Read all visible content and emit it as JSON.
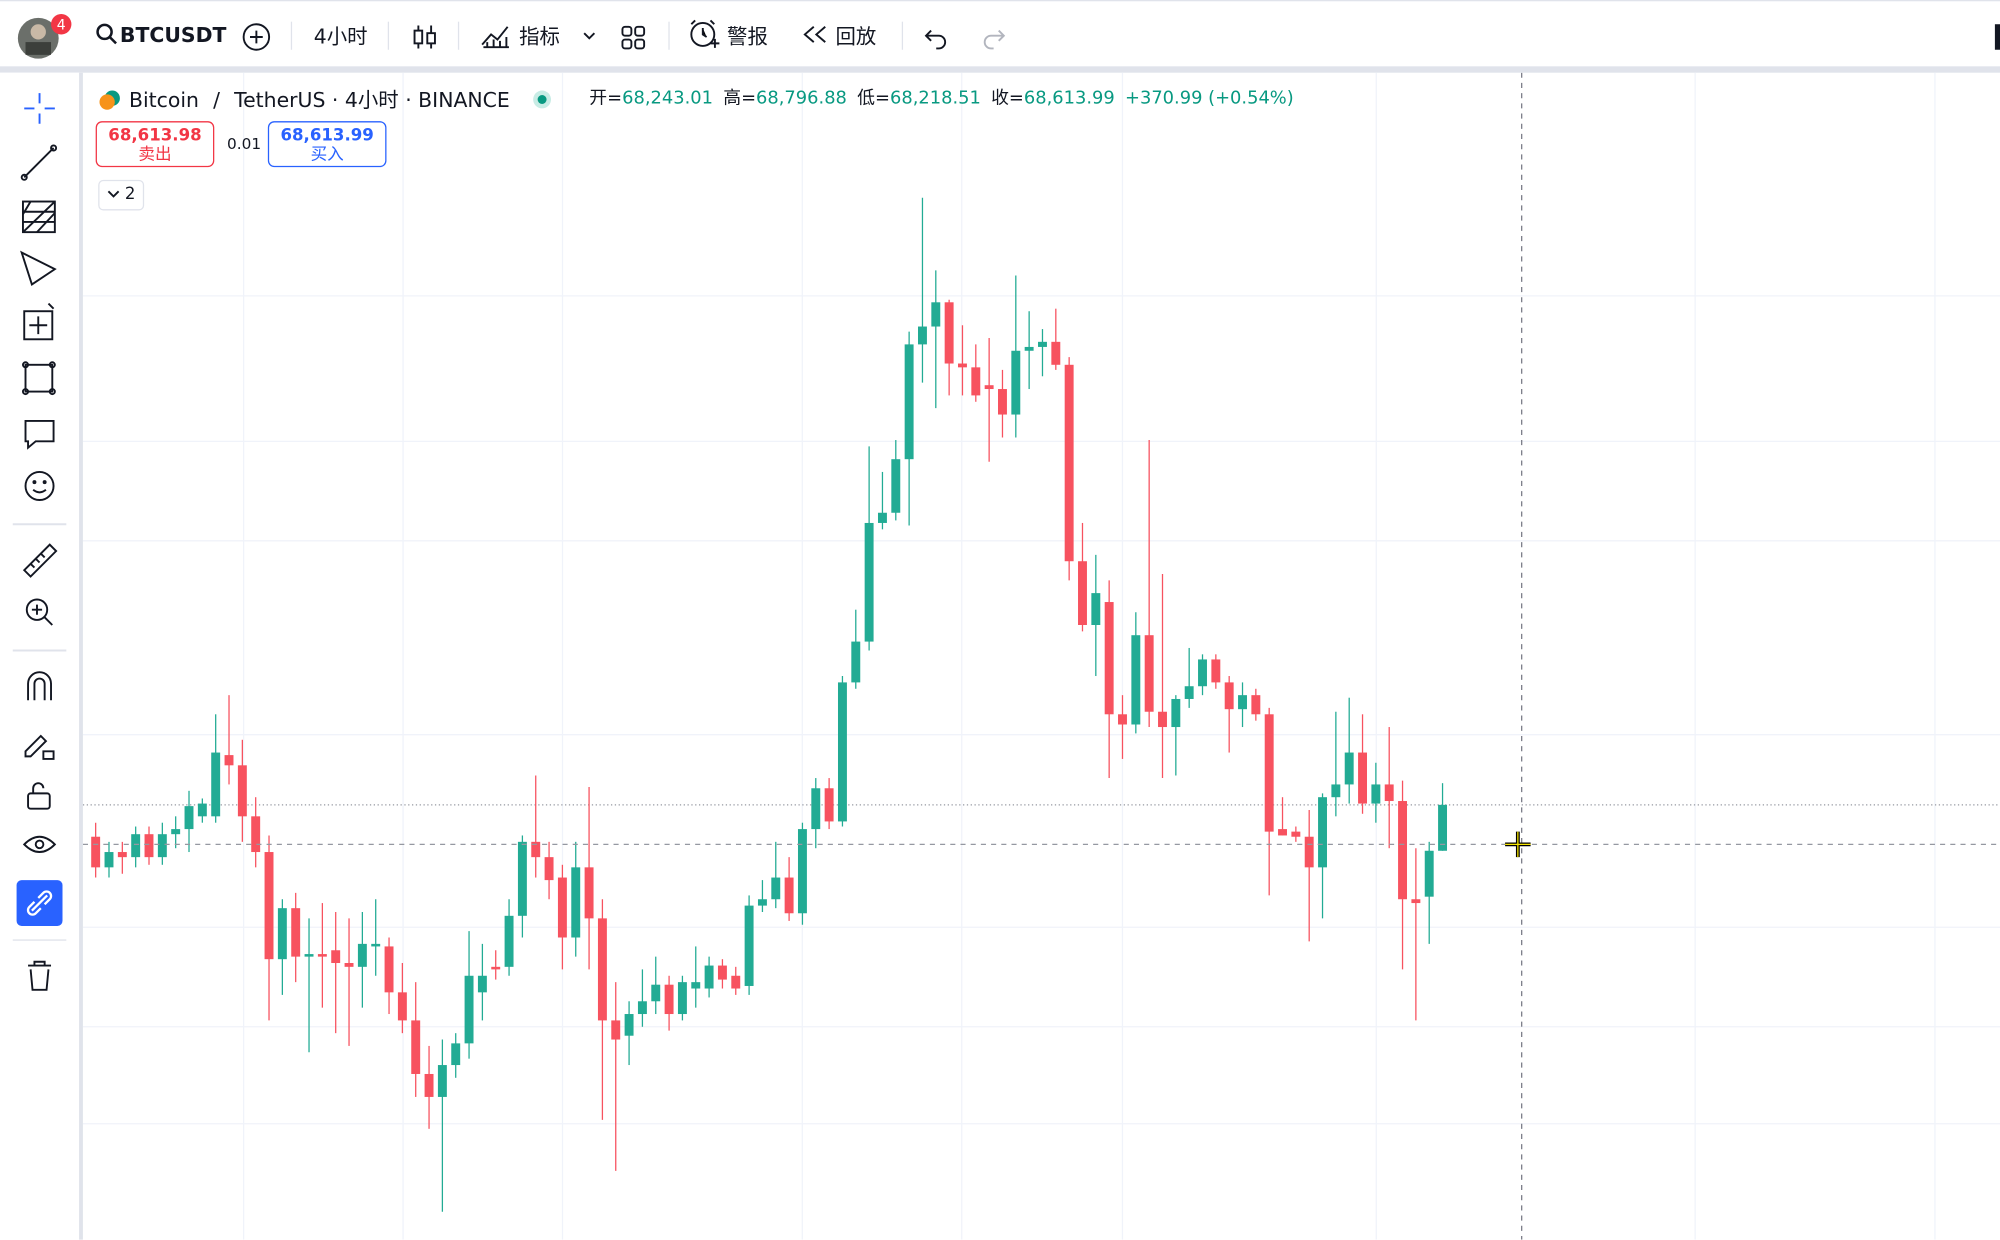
{
  "toolbar": {
    "badge": "4",
    "symbol": "BTCUSDT",
    "interval": "4小时",
    "indicators": "指标",
    "alert": "警报",
    "replay": "回放"
  },
  "legend": {
    "symbol": "Bitcoin",
    "separator": "/",
    "details": "TetherUS · 4小时 · BINANCE",
    "ohlc": [
      {
        "label": "开=",
        "value": "68,243.01"
      },
      {
        "label": "高=",
        "value": "68,796.88"
      },
      {
        "label": "低=",
        "value": "68,218.51"
      },
      {
        "label": "收=",
        "value": "68,613.99"
      }
    ],
    "change": "+370.99 (+0.54%)",
    "sell": {
      "price": "68,613.98",
      "label": "卖出"
    },
    "spread": "0.01",
    "buy": {
      "price": "68,613.99",
      "label": "买入"
    },
    "collapse": "2"
  },
  "chart_data": {
    "type": "candlestick",
    "up_color": "#22ab94",
    "down_color": "#f7525f",
    "ylim": [
      65204,
      74354
    ],
    "open": [
      68364,
      68124,
      68244,
      68204,
      68384,
      68204,
      68384,
      68424,
      68524,
      68524,
      69004,
      68924,
      68524,
      68244,
      67404,
      67804,
      67424,
      67444,
      67474,
      67374,
      67344,
      67504,
      67504,
      67144,
      66924,
      66504,
      66324,
      66574,
      66744,
      67144,
      67344,
      67344,
      67744,
      68324,
      68204,
      68044,
      67574,
      68124,
      67724,
      66924,
      66804,
      66974,
      67074,
      67204,
      66974,
      67174,
      67174,
      67354,
      67274,
      67194,
      67824,
      67874,
      68044,
      67764,
      68424,
      68744,
      68484,
      69574,
      69894,
      70824,
      70904,
      71324,
      72224,
      72364,
      72554,
      72074,
      72044,
      71904,
      71874,
      71674,
      72174,
      72204,
      72244,
      72064,
      70524,
      70024,
      70204,
      69324,
      69244,
      69944,
      69344,
      69224,
      69444,
      69544,
      69754,
      69574,
      69364,
      69474,
      69324,
      68424,
      68404,
      68364,
      68124,
      68674,
      68774,
      69024,
      68624,
      68774,
      68644,
      67874,
      67894,
      68254
    ],
    "high": [
      68474,
      68324,
      68324,
      68444,
      68444,
      68474,
      68524,
      68724,
      68664,
      69324,
      69474,
      69124,
      68674,
      68374,
      67874,
      67924,
      67724,
      67844,
      67774,
      67724,
      67774,
      67874,
      67574,
      67374,
      67224,
      66724,
      66774,
      66824,
      67624,
      67524,
      67474,
      67874,
      68374,
      68844,
      68324,
      68144,
      68324,
      68754,
      67874,
      67224,
      67074,
      67324,
      67424,
      67274,
      67274,
      67504,
      67424,
      67404,
      67344,
      67904,
      68024,
      68324,
      68204,
      68474,
      68824,
      68824,
      69624,
      70144,
      71424,
      71224,
      71474,
      72324,
      73374,
      72804,
      72574,
      72374,
      72224,
      72274,
      72024,
      72764,
      72484,
      72344,
      72504,
      72124,
      70824,
      70574,
      70374,
      69474,
      70124,
      71474,
      70424,
      69474,
      69844,
      69794,
      69794,
      69624,
      69574,
      69524,
      69374,
      68674,
      68444,
      68574,
      68704,
      69344,
      69454,
      69324,
      68944,
      69224,
      68804,
      68274,
      68324,
      68784
    ],
    "low": [
      68044,
      68044,
      68074,
      68124,
      68144,
      68144,
      68274,
      68244,
      68474,
      68474,
      68774,
      68324,
      68124,
      66924,
      67124,
      67224,
      66674,
      67024,
      66824,
      66724,
      67024,
      67274,
      66974,
      66824,
      66324,
      66074,
      65424,
      66474,
      66624,
      66924,
      67244,
      67274,
      67574,
      68044,
      67874,
      67324,
      67424,
      67324,
      66144,
      65744,
      66574,
      66874,
      66974,
      66844,
      66924,
      67024,
      67104,
      67174,
      67124,
      67124,
      67774,
      67804,
      67704,
      67674,
      68274,
      68424,
      68444,
      69524,
      69824,
      70774,
      70844,
      70804,
      71924,
      71724,
      71824,
      71824,
      71774,
      71304,
      71494,
      71494,
      71874,
      71974,
      72024,
      70374,
      69974,
      69624,
      68824,
      68974,
      69174,
      69224,
      68824,
      68844,
      69374,
      69474,
      69524,
      69024,
      69224,
      69274,
      67904,
      68374,
      68324,
      67544,
      67724,
      68524,
      68624,
      68544,
      68474,
      68274,
      67324,
      66924,
      67524,
      68254
    ],
    "close": [
      68124,
      68244,
      68204,
      68384,
      68204,
      68384,
      68424,
      68604,
      68624,
      69024,
      68924,
      68524,
      68244,
      67404,
      67804,
      67424,
      67444,
      67424,
      67374,
      67344,
      67524,
      67524,
      67144,
      66924,
      66504,
      66324,
      66574,
      66744,
      67274,
      67274,
      67324,
      67744,
      68324,
      68204,
      68024,
      67574,
      68124,
      67724,
      66924,
      66774,
      66974,
      67074,
      67204,
      66974,
      67224,
      67224,
      67354,
      67244,
      67174,
      67824,
      67874,
      68044,
      67764,
      68424,
      68744,
      68484,
      69574,
      69894,
      70824,
      70904,
      71324,
      72224,
      72364,
      72554,
      72074,
      72044,
      71824,
      71874,
      71674,
      72174,
      72204,
      72244,
      72064,
      70524,
      70024,
      70274,
      69324,
      69244,
      69944,
      69344,
      69224,
      69444,
      69544,
      69754,
      69574,
      69364,
      69474,
      69324,
      68404,
      68374,
      68364,
      68124,
      68674,
      68774,
      69024,
      68624,
      68774,
      68644,
      67874,
      67844,
      68254,
      68614
    ]
  }
}
